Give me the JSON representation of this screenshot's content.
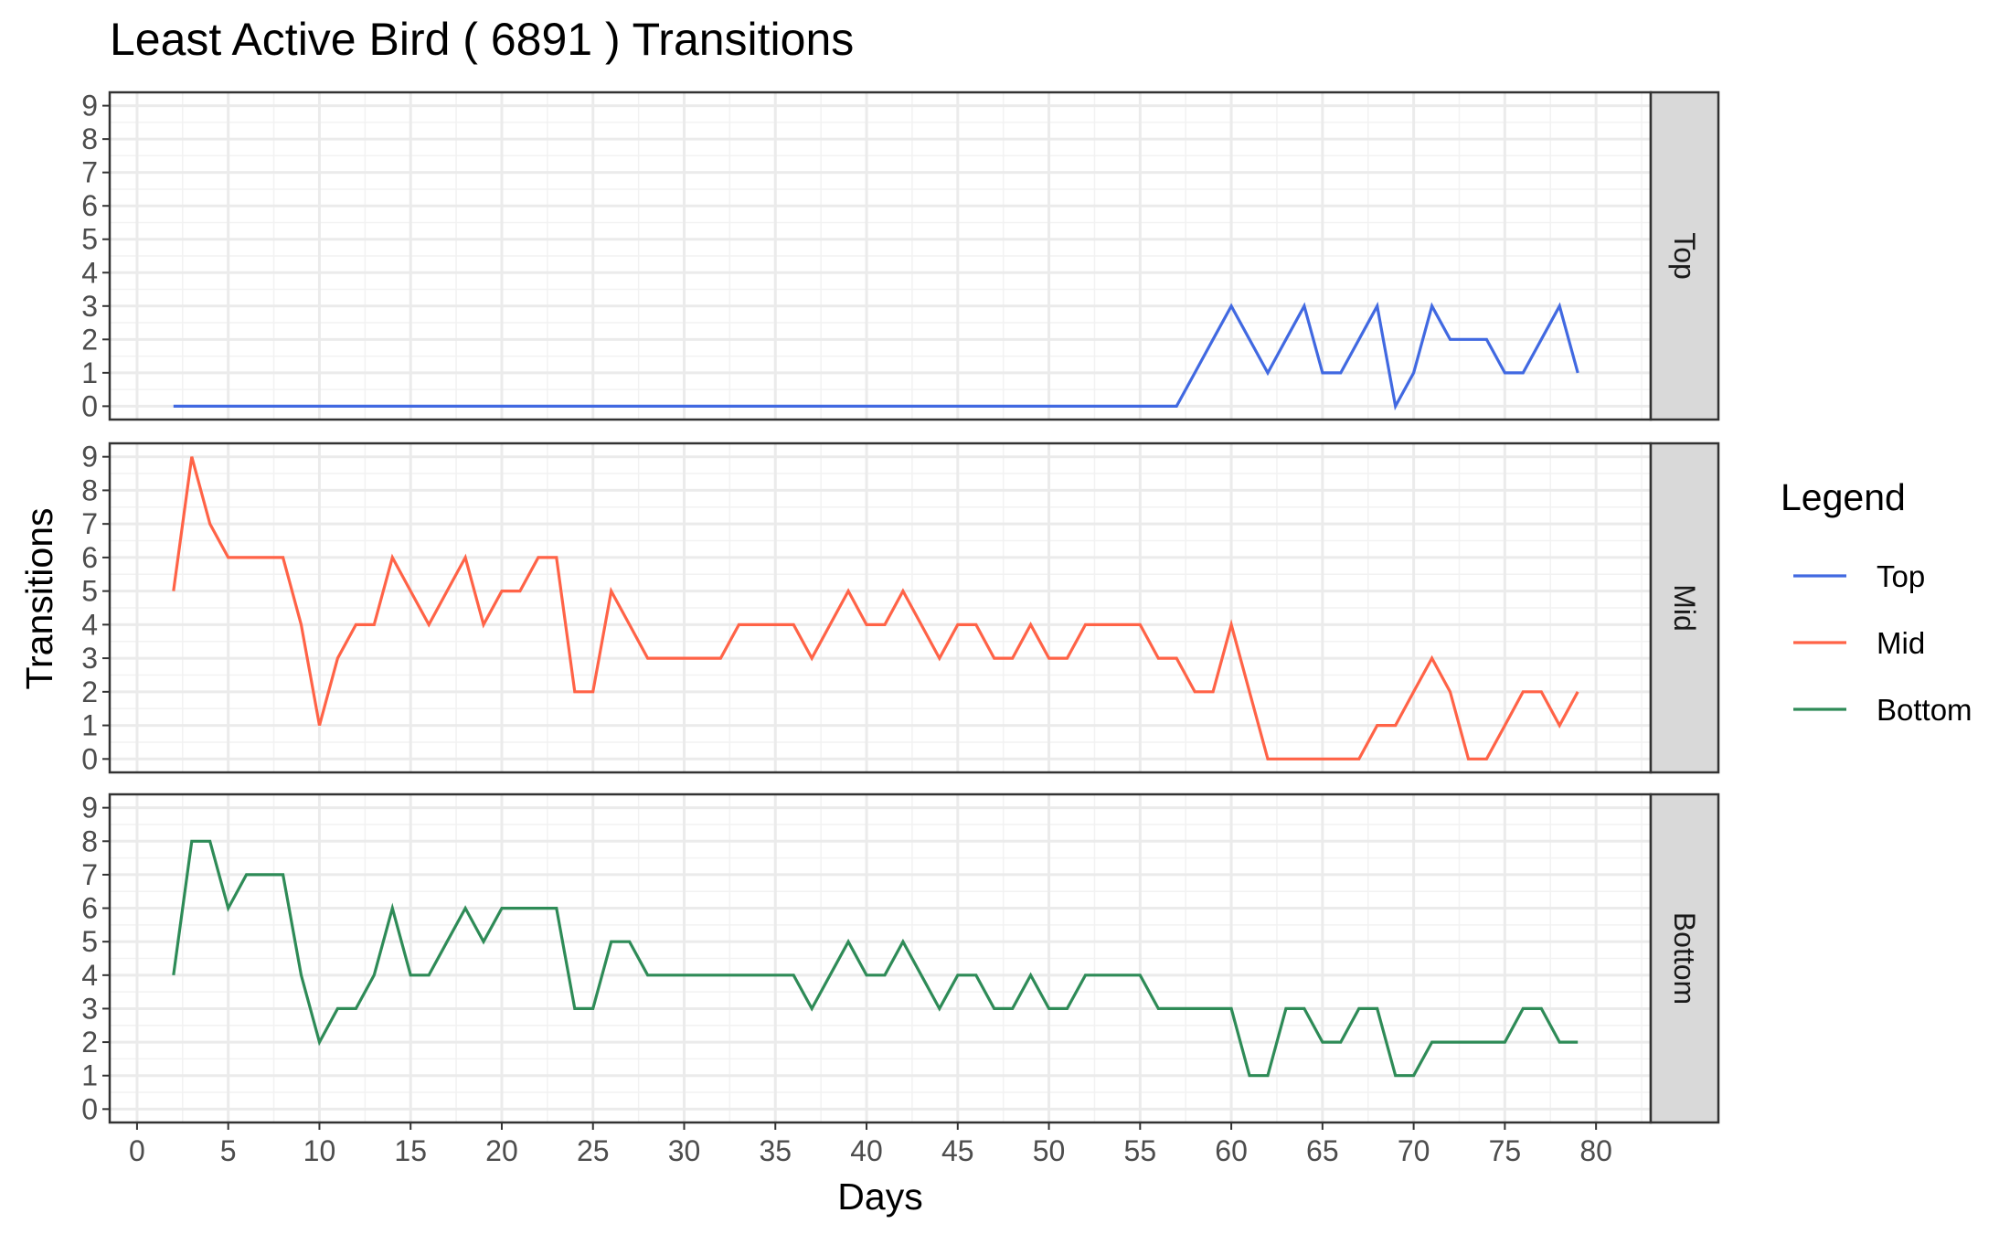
{
  "chart_data": {
    "type": "line",
    "title": "Least Active Bird ( 6891 ) Transitions",
    "xlabel": "Days",
    "ylabel": "Transitions",
    "xlim": [
      -1.5,
      83
    ],
    "ylim": [
      -0.4,
      9.4
    ],
    "x_ticks": [
      0,
      5,
      10,
      15,
      20,
      25,
      30,
      35,
      40,
      45,
      50,
      55,
      60,
      65,
      70,
      75,
      80
    ],
    "y_ticks": [
      0,
      1,
      2,
      3,
      4,
      5,
      6,
      7,
      8,
      9
    ],
    "grid": true,
    "facets": [
      "Top",
      "Mid",
      "Bottom"
    ],
    "legend": {
      "title": "Legend",
      "position": "right",
      "entries": [
        "Top",
        "Mid",
        "Bottom"
      ]
    },
    "x": [
      2,
      3,
      4,
      5,
      6,
      7,
      8,
      9,
      10,
      11,
      12,
      13,
      14,
      15,
      16,
      17,
      18,
      19,
      20,
      21,
      22,
      23,
      24,
      25,
      26,
      27,
      28,
      29,
      30,
      31,
      32,
      33,
      34,
      35,
      36,
      37,
      38,
      39,
      40,
      41,
      42,
      43,
      44,
      45,
      46,
      47,
      48,
      49,
      50,
      51,
      52,
      53,
      54,
      55,
      56,
      57,
      58,
      59,
      60,
      61,
      62,
      63,
      64,
      65,
      66,
      67,
      68,
      69,
      70,
      71,
      72,
      73,
      74,
      75,
      76,
      77,
      78,
      79
    ],
    "series": [
      {
        "name": "Top",
        "color": "#4169e1",
        "values": [
          0,
          0,
          0,
          0,
          0,
          0,
          0,
          0,
          0,
          0,
          0,
          0,
          0,
          0,
          0,
          0,
          0,
          0,
          0,
          0,
          0,
          0,
          0,
          0,
          0,
          0,
          0,
          0,
          0,
          0,
          0,
          0,
          0,
          0,
          0,
          0,
          0,
          0,
          0,
          0,
          0,
          0,
          0,
          0,
          0,
          0,
          0,
          0,
          0,
          0,
          0,
          0,
          0,
          0,
          0,
          0,
          1,
          2,
          3,
          2,
          1,
          2,
          3,
          1,
          1,
          2,
          3,
          0,
          1,
          3,
          2,
          2,
          2,
          1,
          1,
          2,
          3,
          1
        ]
      },
      {
        "name": "Mid",
        "color": "#ff6347",
        "values": [
          5,
          9,
          7,
          6,
          6,
          6,
          6,
          4,
          1,
          3,
          4,
          4,
          6,
          5,
          4,
          5,
          6,
          4,
          5,
          5,
          6,
          6,
          2,
          2,
          5,
          4,
          3,
          3,
          3,
          3,
          3,
          4,
          4,
          4,
          4,
          3,
          4,
          5,
          4,
          4,
          5,
          4,
          3,
          4,
          4,
          3,
          3,
          4,
          3,
          3,
          4,
          4,
          4,
          4,
          3,
          3,
          2,
          2,
          4,
          2,
          0,
          0,
          0,
          0,
          0,
          0,
          1,
          1,
          2,
          3,
          2,
          0,
          0,
          1,
          2,
          2,
          1,
          2
        ]
      },
      {
        "name": "Bottom",
        "color": "#2e8b57",
        "values": [
          4,
          8,
          8,
          6,
          7,
          7,
          7,
          4,
          2,
          3,
          3,
          4,
          6,
          4,
          4,
          5,
          6,
          5,
          6,
          6,
          6,
          6,
          3,
          3,
          5,
          5,
          4,
          4,
          4,
          4,
          4,
          4,
          4,
          4,
          4,
          3,
          4,
          5,
          4,
          4,
          5,
          4,
          3,
          4,
          4,
          3,
          3,
          4,
          3,
          3,
          4,
          4,
          4,
          4,
          3,
          3,
          3,
          3,
          3,
          1,
          1,
          3,
          3,
          2,
          2,
          3,
          3,
          1,
          1,
          2,
          2,
          2,
          2,
          2,
          3,
          3,
          2,
          2
        ]
      }
    ]
  }
}
